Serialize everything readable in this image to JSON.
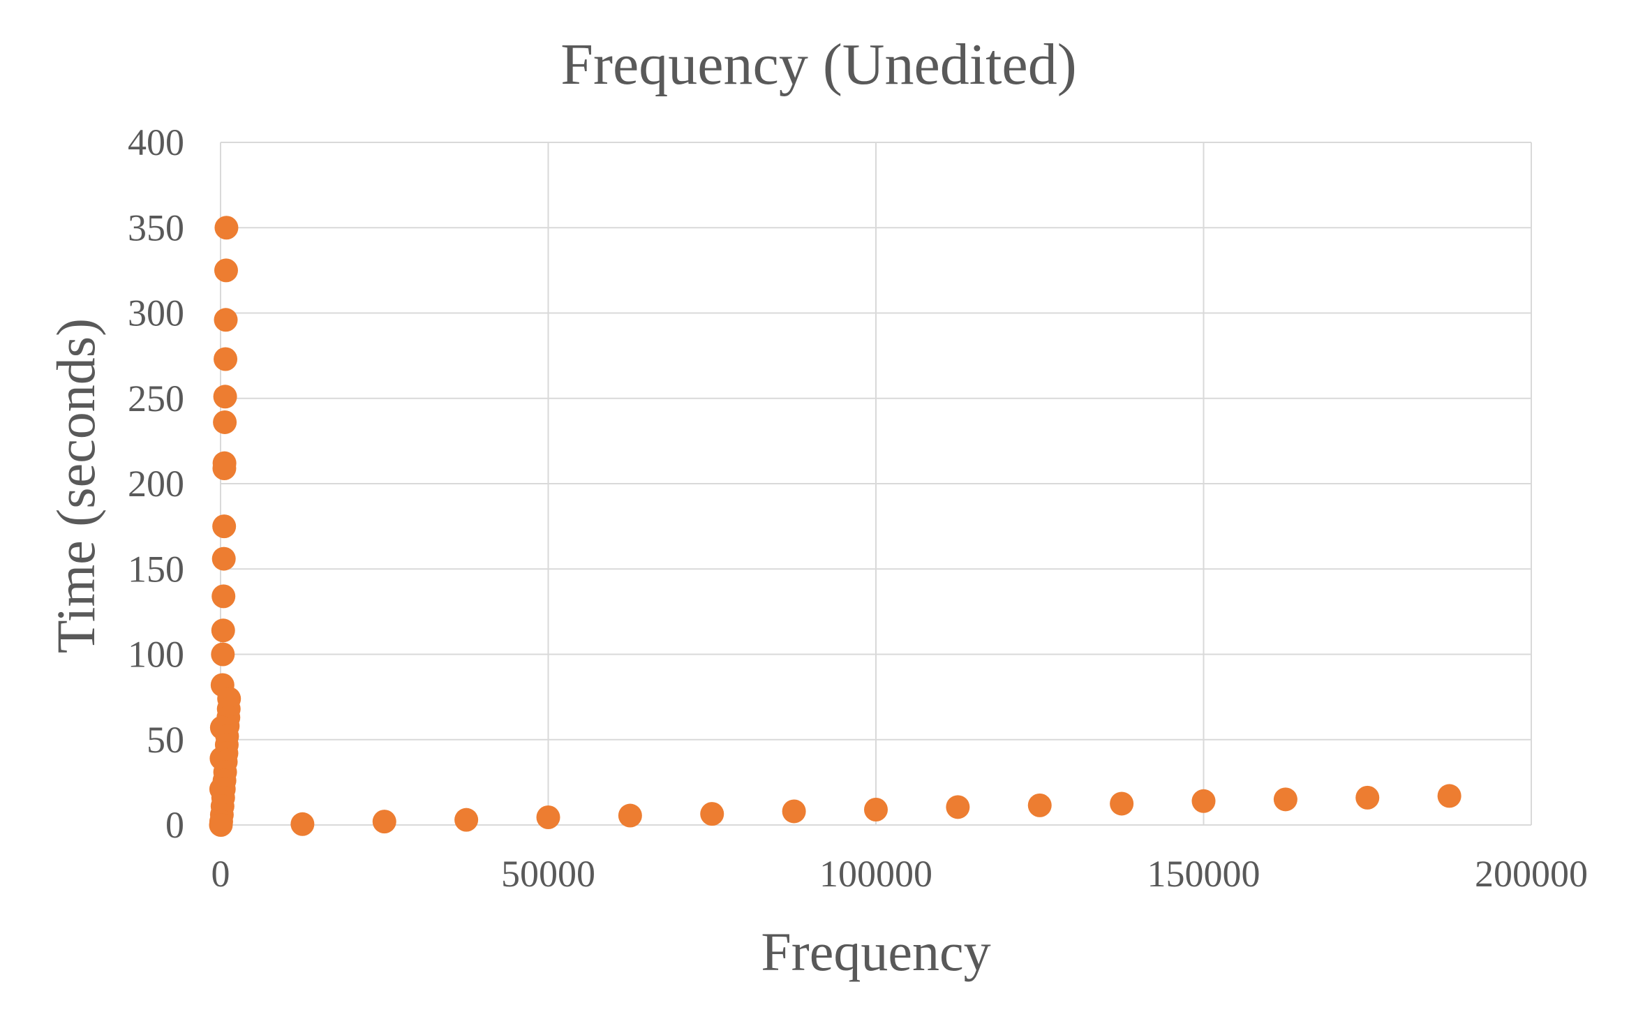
{
  "chart_data": {
    "type": "scatter",
    "title": "Frequency (Unedited)",
    "xlabel": "Frequency",
    "ylabel": "Time (seconds)",
    "xlim": [
      0,
      200000
    ],
    "ylim": [
      0,
      400
    ],
    "x_ticks": [
      "0",
      "50000",
      "100000",
      "150000",
      "200000"
    ],
    "y_ticks": [
      "0",
      "50",
      "100",
      "150",
      "200",
      "250",
      "300",
      "350",
      "400"
    ],
    "grid": true,
    "legend": "none",
    "marker_color": "#ED7D31",
    "series": [
      {
        "points": [
          {
            "x": 900,
            "y": 350
          },
          {
            "x": 850,
            "y": 325
          },
          {
            "x": 800,
            "y": 296
          },
          {
            "x": 750,
            "y": 273
          },
          {
            "x": 700,
            "y": 251
          },
          {
            "x": 650,
            "y": 236
          },
          {
            "x": 600,
            "y": 212
          },
          {
            "x": 580,
            "y": 209
          },
          {
            "x": 550,
            "y": 175
          },
          {
            "x": 500,
            "y": 156
          },
          {
            "x": 450,
            "y": 134
          },
          {
            "x": 400,
            "y": 114
          },
          {
            "x": 350,
            "y": 100
          },
          {
            "x": 300,
            "y": 82
          },
          {
            "x": 1300,
            "y": 74
          },
          {
            "x": 1250,
            "y": 68
          },
          {
            "x": 1200,
            "y": 63
          },
          {
            "x": 1100,
            "y": 58
          },
          {
            "x": 200,
            "y": 57
          },
          {
            "x": 1000,
            "y": 52
          },
          {
            "x": 950,
            "y": 47
          },
          {
            "x": 900,
            "y": 42
          },
          {
            "x": 150,
            "y": 39
          },
          {
            "x": 800,
            "y": 37
          },
          {
            "x": 700,
            "y": 31
          },
          {
            "x": 600,
            "y": 26
          },
          {
            "x": 100,
            "y": 21
          },
          {
            "x": 500,
            "y": 21
          },
          {
            "x": 400,
            "y": 16
          },
          {
            "x": 300,
            "y": 11
          },
          {
            "x": 200,
            "y": 6
          },
          {
            "x": 100,
            "y": 2
          },
          {
            "x": 50,
            "y": 0
          },
          {
            "x": 12500,
            "y": 0.5
          },
          {
            "x": 25000,
            "y": 2
          },
          {
            "x": 37500,
            "y": 3
          },
          {
            "x": 50000,
            "y": 4.5
          },
          {
            "x": 62500,
            "y": 5.5
          },
          {
            "x": 75000,
            "y": 6.5
          },
          {
            "x": 87500,
            "y": 8
          },
          {
            "x": 100000,
            "y": 9
          },
          {
            "x": 112500,
            "y": 10.5
          },
          {
            "x": 125000,
            "y": 11.5
          },
          {
            "x": 137500,
            "y": 12.5
          },
          {
            "x": 150000,
            "y": 14
          },
          {
            "x": 162500,
            "y": 15
          },
          {
            "x": 175000,
            "y": 16
          },
          {
            "x": 187500,
            "y": 17
          }
        ]
      }
    ]
  }
}
